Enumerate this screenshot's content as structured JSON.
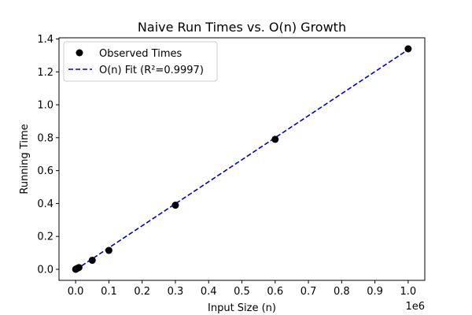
{
  "chart_data": {
    "type": "scatter",
    "title": "Naive Run Times vs. O(n) Growth",
    "xlabel": "Input Size (n)",
    "ylabel": "Running Time",
    "x_offset_label": "1e6",
    "xlim": [
      -50000,
      1050000
    ],
    "ylim": [
      -0.067,
      1.407
    ],
    "x_ticks": [
      0,
      100000,
      200000,
      300000,
      400000,
      500000,
      600000,
      700000,
      800000,
      900000,
      1000000
    ],
    "x_tick_labels": [
      "0.0",
      "0.1",
      "0.2",
      "0.3",
      "0.4",
      "0.5",
      "0.6",
      "0.7",
      "0.8",
      "0.9",
      "1.0"
    ],
    "y_ticks": [
      0.0,
      0.2,
      0.4,
      0.6,
      0.8,
      1.0,
      1.2,
      1.4
    ],
    "y_tick_labels": [
      "0.0",
      "0.2",
      "0.4",
      "0.6",
      "0.8",
      "1.0",
      "1.2",
      "1.4"
    ],
    "grid": false,
    "legend_position": "top-left",
    "series": [
      {
        "name": "Observed Times",
        "kind": "scatter",
        "color": "#000000",
        "x": [
          100,
          1000,
          5000,
          10000,
          50000,
          100000,
          300000,
          600000,
          1000000
        ],
        "y": [
          0.0002,
          0.0015,
          0.006,
          0.011,
          0.055,
          0.115,
          0.39,
          0.79,
          1.34
        ]
      },
      {
        "name": "O(n) Fit (R²=0.9997)",
        "kind": "line",
        "style": "dashed",
        "color": "#0000cc",
        "x": [
          0,
          1000000
        ],
        "y": [
          -0.003,
          1.335
        ]
      }
    ]
  }
}
